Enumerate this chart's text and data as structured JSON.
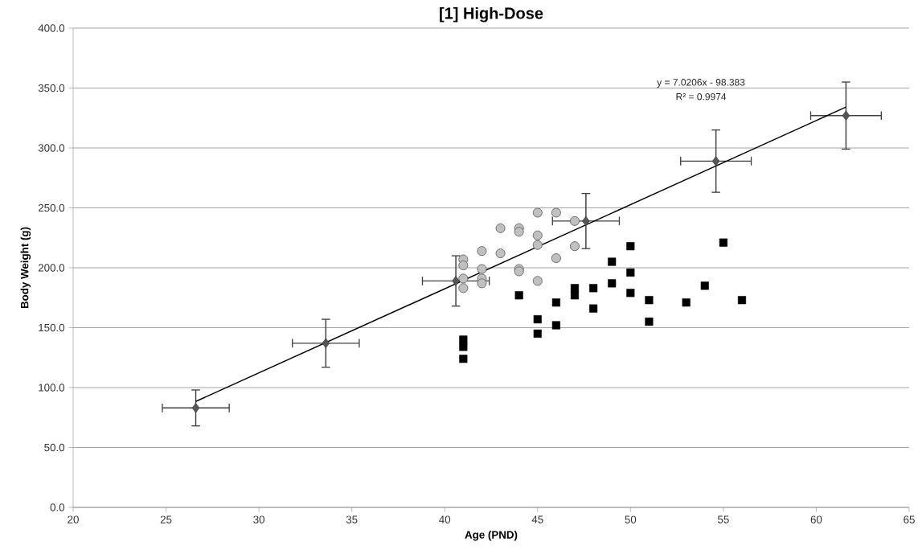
{
  "chart_data": {
    "type": "scatter",
    "title": "[1] High-Dose",
    "xlabel": "Age (PND)",
    "ylabel": "Body  Weight (g)",
    "xlim": [
      20,
      65
    ],
    "xticks": [
      20,
      25,
      30,
      35,
      40,
      45,
      50,
      55,
      60,
      65
    ],
    "ylim": [
      0,
      400
    ],
    "yticks": [
      {
        "value": 0,
        "label": "0.0"
      },
      {
        "value": 50,
        "label": "50.0"
      },
      {
        "value": 100,
        "label": "100.0"
      },
      {
        "value": 150,
        "label": "150.0"
      },
      {
        "value": 200,
        "label": "200.0"
      },
      {
        "value": 250,
        "label": "250.0"
      },
      {
        "value": 300,
        "label": "300.0"
      },
      {
        "value": 350,
        "label": "350.0"
      },
      {
        "value": 400,
        "label": "400.0"
      }
    ],
    "grid": "y",
    "series": [
      {
        "marker": "circle",
        "color": "#c0c0c0",
        "x": [
          41,
          41,
          41,
          41,
          42,
          42,
          42,
          42,
          43,
          43,
          44,
          44,
          44,
          44,
          45,
          45,
          45,
          45,
          46,
          46,
          47,
          47
        ],
        "values": [
          207,
          202,
          191,
          183,
          214,
          199,
          191,
          187,
          233,
          212,
          233,
          230,
          199,
          197,
          246,
          227,
          219,
          189,
          246,
          208,
          239,
          218
        ]
      },
      {
        "marker": "square",
        "color": "#000000",
        "x": [
          41,
          41,
          41,
          44,
          45,
          45,
          46,
          46,
          47,
          47,
          48,
          48,
          49,
          49,
          50,
          50,
          50,
          51,
          51,
          53,
          54,
          55,
          56
        ],
        "values": [
          140,
          134,
          124,
          177,
          157,
          145,
          171,
          152,
          183,
          177,
          183,
          166,
          205,
          187,
          218,
          196,
          179,
          173,
          155,
          171,
          185,
          221,
          173
        ]
      },
      {
        "marker": "diamond",
        "color": "#555555",
        "x": [
          26.6,
          33.6,
          40.6,
          47.6,
          54.6,
          61.6
        ],
        "values": [
          83,
          137,
          189,
          239,
          289,
          327
        ],
        "errors": [
          15,
          20,
          21,
          23,
          26,
          28
        ],
        "xerrors": [
          1.8,
          1.8,
          1.8,
          1.8,
          1.9,
          1.9
        ]
      },
      {
        "type": "line",
        "marker": "none",
        "line_style": "solid",
        "color": "#000000",
        "x": [
          26.6,
          61.6
        ],
        "values": [
          88.4,
          334.1
        ]
      }
    ],
    "annotations": [
      "y = 7.0206x - 98.383",
      "R² = 0.9974"
    ]
  }
}
